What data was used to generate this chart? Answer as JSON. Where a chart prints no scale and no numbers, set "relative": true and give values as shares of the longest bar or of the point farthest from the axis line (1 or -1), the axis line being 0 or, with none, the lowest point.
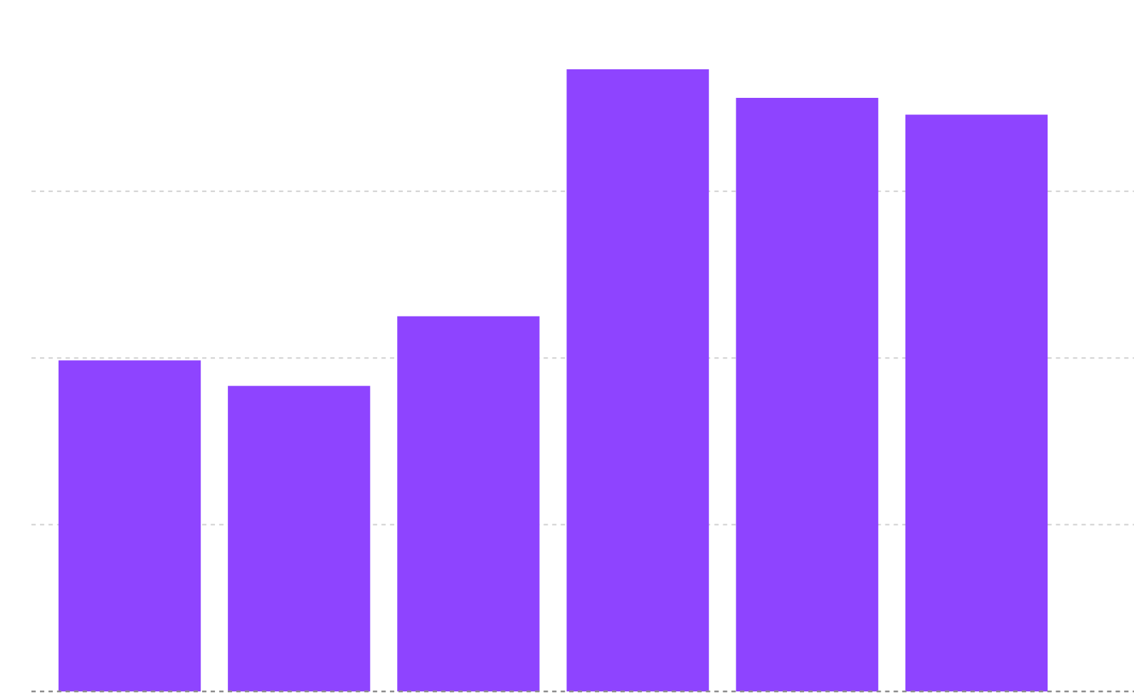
{
  "chart_data": {
    "type": "bar",
    "relative": true,
    "grid": "y",
    "categories": [
      null,
      null,
      null,
      null,
      null,
      null
    ],
    "values": [
      0.532,
      0.491,
      0.603,
      1,
      0.954,
      0.927
    ],
    "color": "#8e44ff"
  }
}
